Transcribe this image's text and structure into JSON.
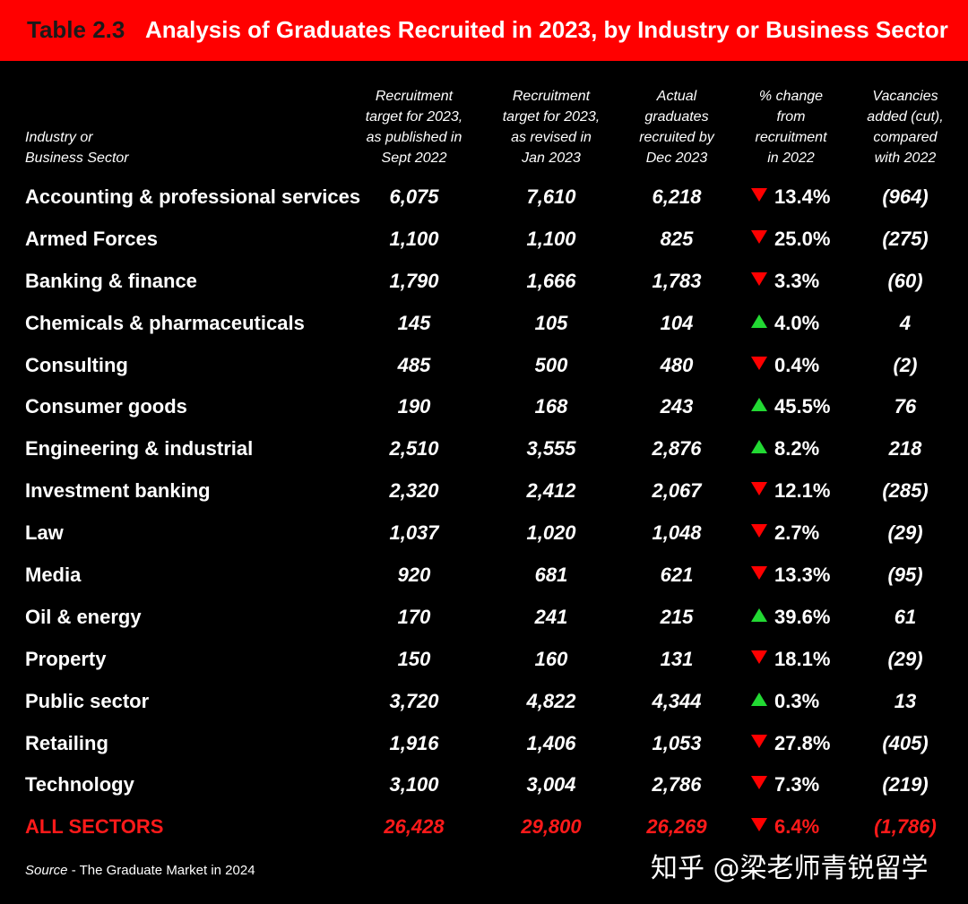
{
  "title": {
    "number": "Table 2.3",
    "text": "Analysis of Graduates Recruited in 2023, by Industry or Business Sector"
  },
  "columns": {
    "sector": "Industry or\nBusiness Sector",
    "target_sept": "Recruitment\ntarget for 2023,\nas published in\nSept 2022",
    "target_jan": "Recruitment\ntarget for 2023,\nas revised in\nJan 2023",
    "actual": "Actual\ngraduates\nrecruited by\nDec 2023",
    "pct_change": "% change\nfrom\nrecruitment\nin 2022",
    "vacancies": "Vacancies\nadded (cut),\ncompared\nwith 2022"
  },
  "rows": [
    {
      "sector": "Accounting & professional services",
      "target_sept": "6,075",
      "target_jan": "7,610",
      "actual": "6,218",
      "direction": "down",
      "pct": "13.4%",
      "vacancies": "(964)"
    },
    {
      "sector": "Armed Forces",
      "target_sept": "1,100",
      "target_jan": "1,100",
      "actual": "825",
      "direction": "down",
      "pct": "25.0%",
      "vacancies": "(275)"
    },
    {
      "sector": "Banking & finance",
      "target_sept": "1,790",
      "target_jan": "1,666",
      "actual": "1,783",
      "direction": "down",
      "pct": "3.3%",
      "vacancies": "(60)"
    },
    {
      "sector": "Chemicals & pharmaceuticals",
      "target_sept": "145",
      "target_jan": "105",
      "actual": "104",
      "direction": "up",
      "pct": "4.0%",
      "vacancies": "4"
    },
    {
      "sector": "Consulting",
      "target_sept": "485",
      "target_jan": "500",
      "actual": "480",
      "direction": "down",
      "pct": "0.4%",
      "vacancies": "(2)"
    },
    {
      "sector": "Consumer goods",
      "target_sept": "190",
      "target_jan": "168",
      "actual": "243",
      "direction": "up",
      "pct": "45.5%",
      "vacancies": "76"
    },
    {
      "sector": "Engineering & industrial",
      "target_sept": "2,510",
      "target_jan": "3,555",
      "actual": "2,876",
      "direction": "up",
      "pct": "8.2%",
      "vacancies": "218"
    },
    {
      "sector": "Investment banking",
      "target_sept": "2,320",
      "target_jan": "2,412",
      "actual": "2,067",
      "direction": "down",
      "pct": "12.1%",
      "vacancies": "(285)"
    },
    {
      "sector": "Law",
      "target_sept": "1,037",
      "target_jan": "1,020",
      "actual": "1,048",
      "direction": "down",
      "pct": "2.7%",
      "vacancies": "(29)"
    },
    {
      "sector": "Media",
      "target_sept": "920",
      "target_jan": "681",
      "actual": "621",
      "direction": "down",
      "pct": "13.3%",
      "vacancies": "(95)"
    },
    {
      "sector": "Oil & energy",
      "target_sept": "170",
      "target_jan": "241",
      "actual": "215",
      "direction": "up",
      "pct": "39.6%",
      "vacancies": "61"
    },
    {
      "sector": "Property",
      "target_sept": "150",
      "target_jan": "160",
      "actual": "131",
      "direction": "down",
      "pct": "18.1%",
      "vacancies": "(29)"
    },
    {
      "sector": "Public sector",
      "target_sept": "3,720",
      "target_jan": "4,822",
      "actual": "4,344",
      "direction": "up",
      "pct": "0.3%",
      "vacancies": "13"
    },
    {
      "sector": "Retailing",
      "target_sept": "1,916",
      "target_jan": "1,406",
      "actual": "1,053",
      "direction": "down",
      "pct": "27.8%",
      "vacancies": "(405)"
    },
    {
      "sector": "Technology",
      "target_sept": "3,100",
      "target_jan": "3,004",
      "actual": "2,786",
      "direction": "down",
      "pct": "7.3%",
      "vacancies": "(219)"
    },
    {
      "sector": "ALL SECTORS",
      "target_sept": "26,428",
      "target_jan": "29,800",
      "actual": "26,269",
      "direction": "down",
      "pct": "6.4%",
      "vacancies": "(1,786)",
      "total": true
    }
  ],
  "source": {
    "label": "Source",
    "text": " - The Graduate Market in 2024"
  },
  "watermark": "知乎 @梁老师青锐留学",
  "colors": {
    "banner": "#ff0000",
    "down": "#ff0000",
    "up": "#22d933",
    "total": "#ff1a1a"
  }
}
